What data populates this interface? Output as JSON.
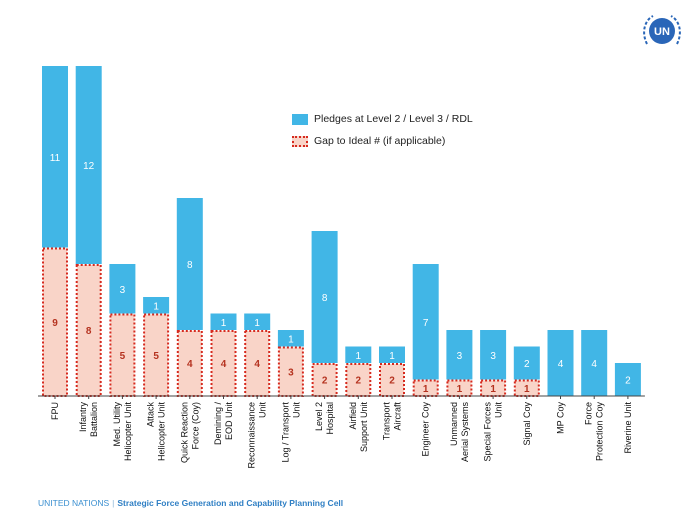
{
  "logo": {
    "icon": "un-emblem-icon",
    "text": "UN",
    "color": "#2a66b8"
  },
  "footer": {
    "org": "UNITED NATIONS",
    "separator": "|",
    "cell": "Strategic Force Generation and Capability Planning Cell"
  },
  "colors": {
    "pledge_fill": "#41b6e6",
    "gap_fill": "#f9d4c8",
    "gap_border": "#d62a1e",
    "gap_label": "#b5321f",
    "pledge_label": "#ffffff"
  },
  "chart_data": {
    "type": "bar",
    "stacked": true,
    "legend": [
      {
        "key": "pledges",
        "label": "Pledges at Level 2 / Level 3 / RDL"
      },
      {
        "key": "gap",
        "label": "Gap to Ideal #  (if applicable)"
      }
    ],
    "legend_position": "top-center",
    "grid": false,
    "ylim": [
      0,
      20
    ],
    "categories": [
      [
        "FPU"
      ],
      [
        "Infantry",
        "Battalion"
      ],
      [
        "Med. Utility",
        "Helicopter Unit"
      ],
      [
        "Attack",
        "Helicopter Unit"
      ],
      [
        "Quick Reaction",
        "Force (Coy)"
      ],
      [
        "Demining /",
        "EOD Unit"
      ],
      [
        "Reconnaissance",
        "Unit"
      ],
      [
        "Log / Transport",
        "Unit"
      ],
      [
        "Level 2",
        "Hospital"
      ],
      [
        "Airfield",
        "Support Unit"
      ],
      [
        "Transport",
        "Aircraft"
      ],
      [
        "Engineer Coy"
      ],
      [
        "Unmanned",
        "Aerial Systems"
      ],
      [
        "Special Forces",
        "Unit"
      ],
      [
        "Signal Coy"
      ],
      [
        "MP Coy"
      ],
      [
        "Force",
        "Protection Coy"
      ],
      [
        "Riverine Unit"
      ]
    ],
    "series": [
      {
        "name": "Gap to Ideal #  (if applicable)",
        "key": "gap",
        "values": [
          9,
          8,
          5,
          5,
          4,
          4,
          4,
          3,
          2,
          2,
          2,
          1,
          1,
          1,
          1,
          0,
          0,
          0
        ]
      },
      {
        "name": "Pledges at Level 2 / Level 3 / RDL",
        "key": "pledges",
        "values": [
          11,
          12,
          3,
          1,
          8,
          1,
          1,
          1,
          8,
          1,
          1,
          7,
          3,
          3,
          2,
          4,
          4,
          2
        ]
      }
    ]
  }
}
